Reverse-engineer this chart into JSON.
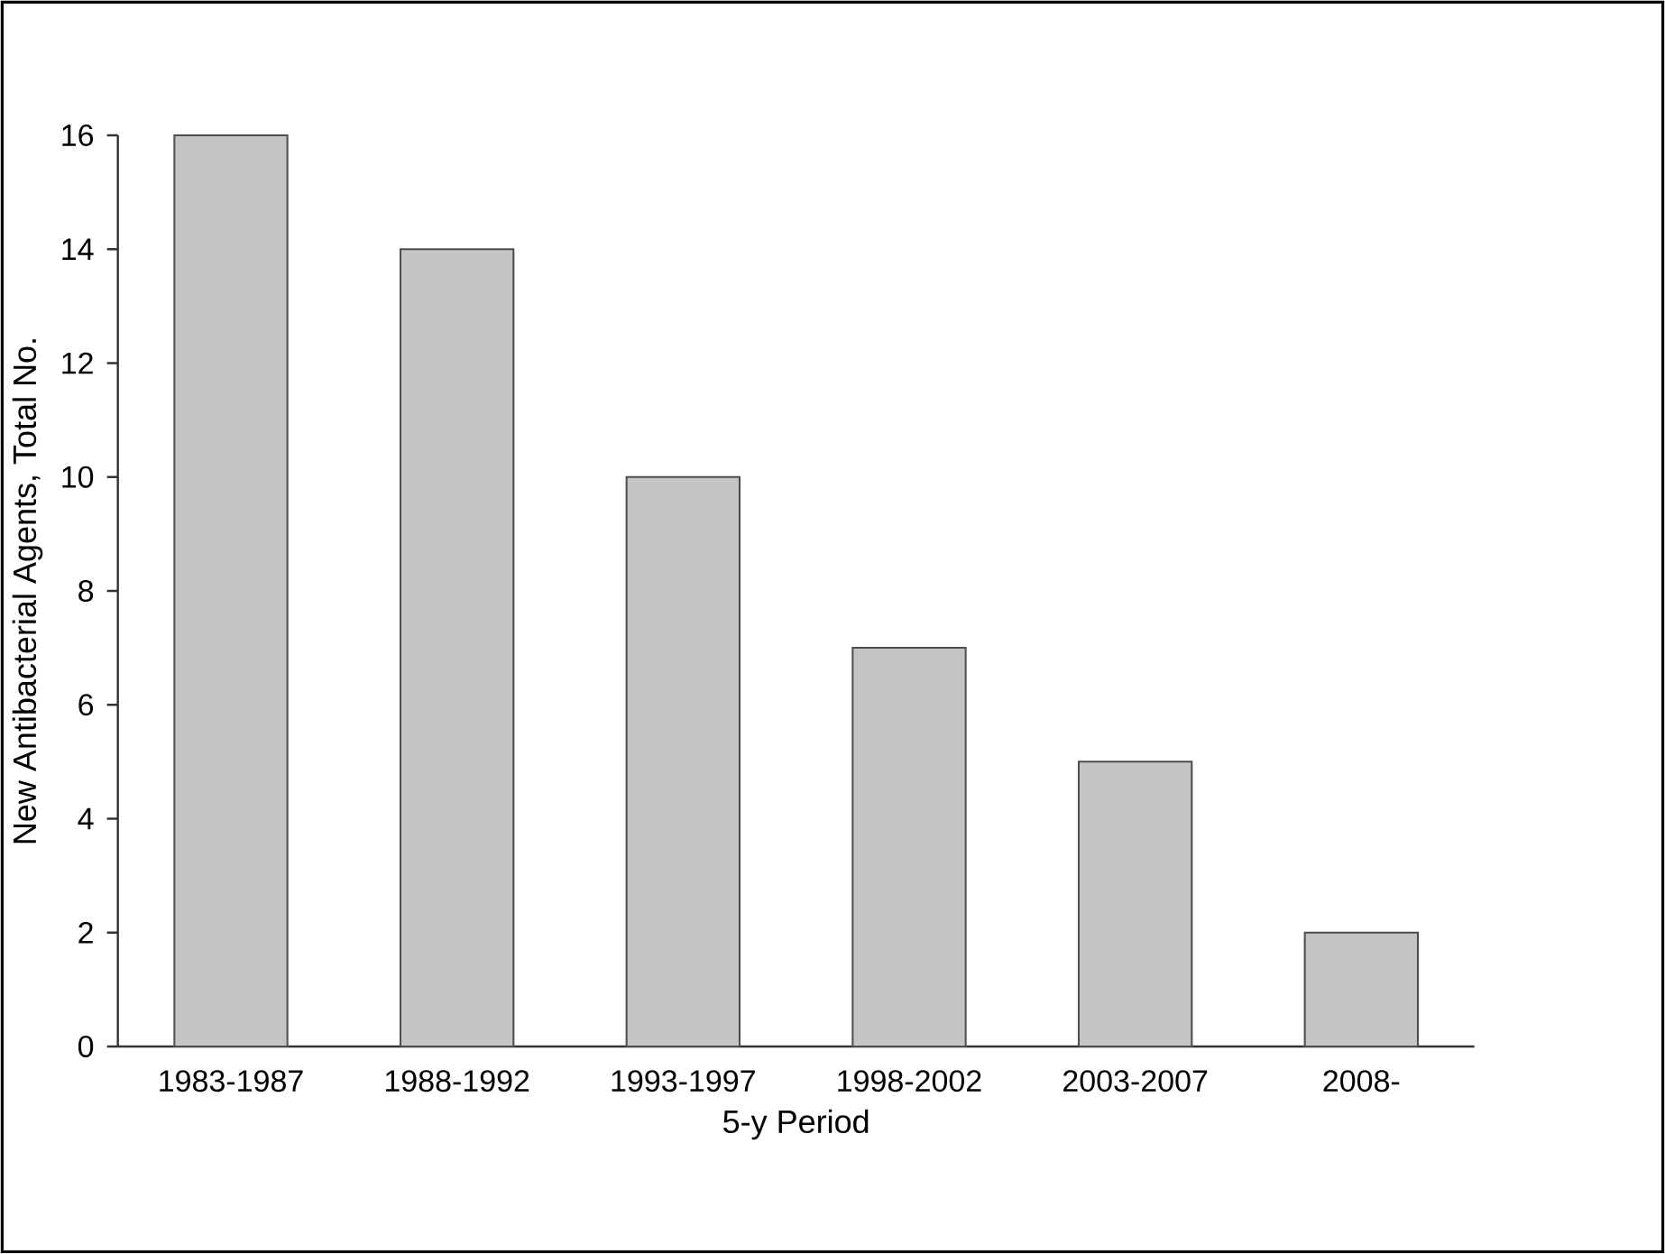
{
  "chart_data": {
    "type": "bar",
    "xlabel": "5-y Period",
    "ylabel": "New Antibacterial Agents, Total No.",
    "categories": [
      "1983-1987",
      "1988-1992",
      "1993-1997",
      "1998-2002",
      "2003-2007",
      "2008-"
    ],
    "values": [
      16,
      14,
      10,
      7,
      5,
      2
    ],
    "color": "#c4c4c4",
    "ylim": [
      0,
      16
    ],
    "yticks": [
      0,
      2,
      4,
      6,
      8,
      10,
      12,
      14,
      16
    ]
  }
}
